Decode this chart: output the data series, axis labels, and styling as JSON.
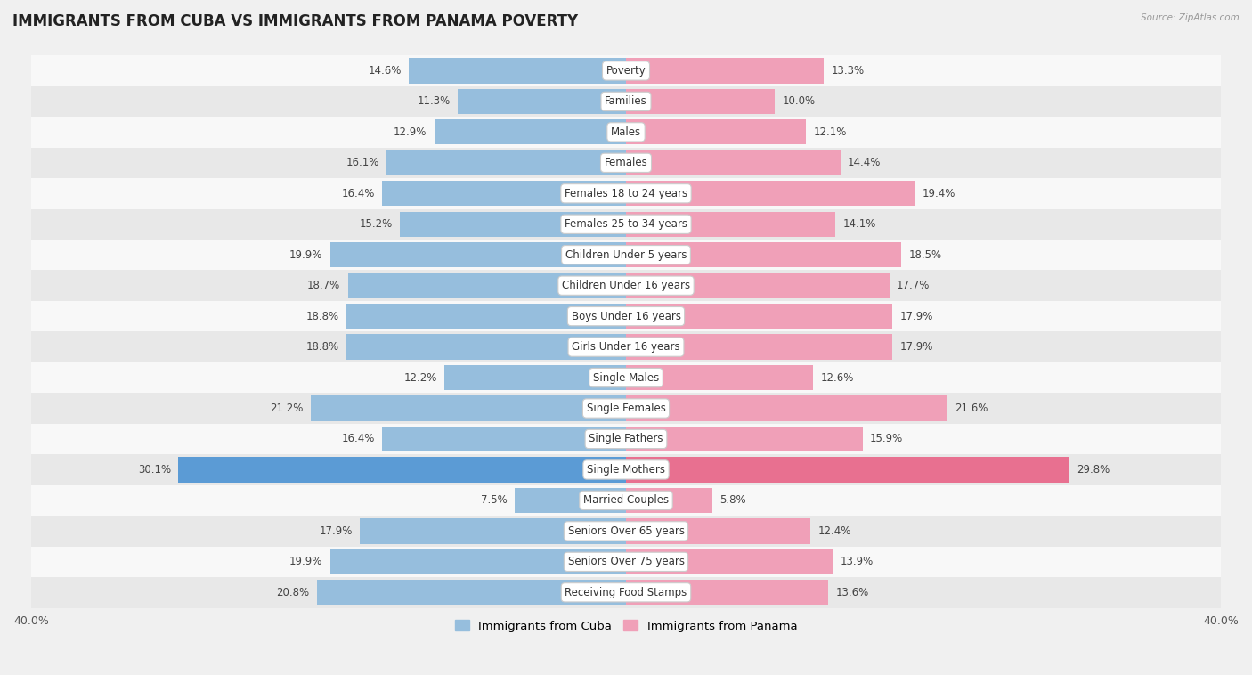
{
  "title": "IMMIGRANTS FROM CUBA VS IMMIGRANTS FROM PANAMA POVERTY",
  "source": "Source: ZipAtlas.com",
  "categories": [
    "Poverty",
    "Families",
    "Males",
    "Females",
    "Females 18 to 24 years",
    "Females 25 to 34 years",
    "Children Under 5 years",
    "Children Under 16 years",
    "Boys Under 16 years",
    "Girls Under 16 years",
    "Single Males",
    "Single Females",
    "Single Fathers",
    "Single Mothers",
    "Married Couples",
    "Seniors Over 65 years",
    "Seniors Over 75 years",
    "Receiving Food Stamps"
  ],
  "cuba_values": [
    14.6,
    11.3,
    12.9,
    16.1,
    16.4,
    15.2,
    19.9,
    18.7,
    18.8,
    18.8,
    12.2,
    21.2,
    16.4,
    30.1,
    7.5,
    17.9,
    19.9,
    20.8
  ],
  "panama_values": [
    13.3,
    10.0,
    12.1,
    14.4,
    19.4,
    14.1,
    18.5,
    17.7,
    17.9,
    17.9,
    12.6,
    21.6,
    15.9,
    29.8,
    5.8,
    12.4,
    13.9,
    13.6
  ],
  "cuba_color": "#96bedd",
  "panama_color": "#f0a0b8",
  "cuba_highlight_color": "#5b9bd5",
  "panama_highlight_color": "#e87090",
  "highlight_rows": [
    13
  ],
  "background_color": "#f0f0f0",
  "row_color_light": "#f8f8f8",
  "row_color_dark": "#e8e8e8",
  "max_value": 40.0,
  "legend_cuba": "Immigrants from Cuba",
  "legend_panama": "Immigrants from Panama",
  "title_fontsize": 12,
  "label_fontsize": 8.5,
  "value_fontsize": 8.5,
  "axis_label_fontsize": 9
}
